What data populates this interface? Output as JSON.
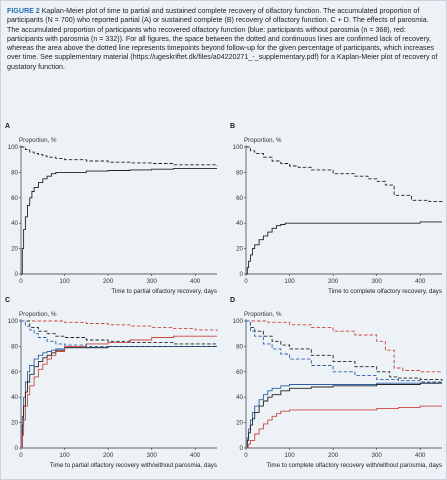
{
  "caption": {
    "label": "FIGURE 2",
    "text": " Kaplan-Meier plot of time to partial and sustained complete recovery of olfactory function. The accumulated proportion of participants (N = 700) who reported partial (A) or sustained complete (B) recovery of olfactory function. C + D. The effects of parosmia. The accumulated proportion of participants who recovered olfactory function (blue: participants without parosmia (n = 368), red: participants with parosmia (n = 332)). For all figures, the space between the dotted and continuous lines are confirmed lack of recovery, whereas the area above the dotted line represents timepoints beyond follow-up for the given percentage of participants, which increases over time. See supplementary material (https://ugeskriftet.dk/files/a04220271_-_supplementary.pdf) for a Kaplan-Meier plot of recovery of gustatory function."
  },
  "colors": {
    "black": "#222222",
    "blue": "#2f5fa8",
    "red": "#c9463f"
  },
  "chart_data": [
    {
      "type": "line",
      "panel": "A",
      "ylabel": "Proportion, %",
      "xlabel": "Time to partial olfactory recovery, days",
      "xlim": [
        0,
        450
      ],
      "ylim": [
        0,
        100
      ],
      "xticks": [
        0,
        100,
        200,
        300,
        400
      ],
      "yticks": [
        0,
        20,
        40,
        60,
        80,
        100
      ],
      "series": [
        {
          "color": "black",
          "style": "solid",
          "x": [
            0,
            3,
            6,
            10,
            15,
            20,
            25,
            30,
            40,
            50,
            60,
            70,
            80,
            90,
            100,
            150,
            200,
            250,
            300,
            350,
            400,
            450
          ],
          "y": [
            0,
            20,
            35,
            45,
            54,
            60,
            65,
            68,
            72,
            75,
            77,
            79,
            80,
            80,
            80,
            81,
            81.5,
            82,
            82.5,
            83,
            83,
            83
          ]
        },
        {
          "color": "black",
          "style": "dashed",
          "x": [
            0,
            10,
            20,
            30,
            40,
            50,
            60,
            80,
            100,
            150,
            200,
            250,
            300,
            350,
            400,
            450
          ],
          "y": [
            100,
            98,
            96,
            95,
            94,
            93,
            92,
            91,
            90,
            89,
            88,
            87.5,
            87,
            86,
            86,
            85
          ]
        }
      ]
    },
    {
      "type": "line",
      "panel": "B",
      "ylabel": "Proportion, %",
      "xlabel": "Time to complete olfactory recovery, days",
      "xlim": [
        0,
        450
      ],
      "ylim": [
        0,
        100
      ],
      "xticks": [
        0,
        100,
        200,
        300,
        400
      ],
      "yticks": [
        0,
        20,
        40,
        60,
        80,
        100
      ],
      "series": [
        {
          "color": "black",
          "style": "solid",
          "x": [
            0,
            3,
            6,
            10,
            15,
            20,
            30,
            40,
            50,
            60,
            70,
            80,
            90,
            100,
            150,
            200,
            300,
            400,
            450
          ],
          "y": [
            0,
            5,
            10,
            15,
            20,
            23,
            27,
            30,
            33,
            36,
            38,
            39,
            40,
            40,
            40,
            40,
            40,
            41,
            41
          ]
        },
        {
          "color": "black",
          "style": "dashed",
          "x": [
            0,
            10,
            20,
            40,
            60,
            80,
            100,
            120,
            150,
            200,
            250,
            280,
            300,
            320,
            340,
            380,
            420,
            450
          ],
          "y": [
            100,
            97,
            95,
            92,
            89,
            87,
            85,
            84,
            82,
            79,
            77,
            75,
            73,
            70,
            62,
            58,
            57,
            56
          ]
        }
      ]
    },
    {
      "type": "line",
      "panel": "C",
      "ylabel": "Proportion, %",
      "xlabel": "Time to partial olfactory recovery with/without parosmia, days",
      "xlim": [
        0,
        450
      ],
      "ylim": [
        0,
        100
      ],
      "xticks": [
        0,
        100,
        200,
        300,
        400
      ],
      "yticks": [
        0,
        20,
        40,
        60,
        80,
        100
      ],
      "series": [
        {
          "color": "blue",
          "style": "solid",
          "x": [
            0,
            3,
            6,
            10,
            15,
            20,
            30,
            40,
            50,
            60,
            70,
            80,
            100,
            150,
            200,
            300,
            400,
            450
          ],
          "y": [
            0,
            25,
            40,
            52,
            60,
            65,
            70,
            73,
            75,
            76,
            77,
            78,
            79,
            79,
            80,
            80,
            80,
            80
          ]
        },
        {
          "color": "black",
          "style": "solid",
          "x": [
            0,
            3,
            6,
            10,
            15,
            20,
            30,
            40,
            50,
            60,
            70,
            80,
            100,
            150,
            200,
            300,
            400,
            450
          ],
          "y": [
            0,
            18,
            33,
            44,
            52,
            58,
            64,
            68,
            71,
            73,
            75,
            77,
            79,
            79,
            80,
            80,
            80,
            80
          ]
        },
        {
          "color": "red",
          "style": "solid",
          "x": [
            0,
            3,
            6,
            10,
            15,
            20,
            30,
            40,
            50,
            60,
            70,
            80,
            100,
            150,
            200,
            250,
            300,
            350,
            400,
            450
          ],
          "y": [
            0,
            10,
            22,
            33,
            42,
            49,
            56,
            62,
            66,
            70,
            73,
            76,
            80,
            82,
            83,
            85,
            87,
            88,
            88,
            88
          ]
        },
        {
          "color": "red",
          "style": "dashed",
          "x": [
            0,
            50,
            100,
            150,
            200,
            250,
            300,
            350,
            400,
            450
          ],
          "y": [
            100,
            100,
            99,
            98,
            97,
            96,
            95,
            94,
            93,
            92
          ]
        },
        {
          "color": "black",
          "style": "dashed",
          "x": [
            0,
            20,
            40,
            60,
            80,
            100,
            150,
            200,
            250,
            300,
            350,
            400,
            450
          ],
          "y": [
            100,
            95,
            92,
            90,
            88,
            87,
            85,
            84,
            83,
            83,
            82,
            82,
            81
          ]
        },
        {
          "color": "blue",
          "style": "dashed",
          "x": [
            0,
            10,
            20,
            30,
            40,
            60,
            80,
            100,
            150,
            200,
            300,
            400,
            450
          ],
          "y": [
            100,
            96,
            93,
            90,
            87,
            84,
            82,
            81,
            80,
            80,
            80,
            80,
            80
          ]
        }
      ]
    },
    {
      "type": "line",
      "panel": "D",
      "ylabel": "Proportion, %",
      "xlabel": "Time to complete olfactory recovery with/without parosmia, days",
      "xlim": [
        0,
        450
      ],
      "ylim": [
        0,
        100
      ],
      "xticks": [
        0,
        100,
        200,
        300,
        400
      ],
      "yticks": [
        0,
        20,
        40,
        60,
        80,
        100
      ],
      "series": [
        {
          "color": "blue",
          "style": "solid",
          "x": [
            0,
            3,
            6,
            10,
            15,
            20,
            30,
            40,
            50,
            60,
            80,
            100,
            150,
            200,
            300,
            400,
            450
          ],
          "y": [
            0,
            8,
            15,
            22,
            28,
            33,
            38,
            42,
            45,
            47,
            49,
            50,
            50,
            50,
            51,
            51,
            51
          ]
        },
        {
          "color": "black",
          "style": "solid",
          "x": [
            0,
            3,
            6,
            10,
            15,
            20,
            30,
            40,
            50,
            60,
            80,
            100,
            150,
            200,
            300,
            400,
            450
          ],
          "y": [
            0,
            6,
            12,
            18,
            23,
            28,
            33,
            37,
            40,
            42,
            45,
            47,
            48,
            49,
            50,
            51,
            51
          ]
        },
        {
          "color": "red",
          "style": "solid",
          "x": [
            0,
            5,
            10,
            20,
            30,
            40,
            50,
            60,
            70,
            80,
            100,
            150,
            200,
            300,
            350,
            400,
            450
          ],
          "y": [
            0,
            3,
            6,
            11,
            15,
            19,
            22,
            25,
            27,
            29,
            30,
            30,
            30,
            31,
            32,
            33,
            33
          ]
        },
        {
          "color": "red",
          "style": "dashed",
          "x": [
            0,
            50,
            100,
            150,
            200,
            250,
            300,
            320,
            340,
            360,
            400,
            450
          ],
          "y": [
            100,
            99,
            97,
            95,
            92,
            89,
            84,
            77,
            63,
            61,
            60,
            60
          ]
        },
        {
          "color": "black",
          "style": "dashed",
          "x": [
            0,
            10,
            20,
            40,
            60,
            80,
            100,
            150,
            200,
            250,
            300,
            330,
            350,
            400,
            450
          ],
          "y": [
            100,
            95,
            92,
            88,
            84,
            81,
            78,
            73,
            68,
            64,
            60,
            56,
            55,
            54,
            53
          ]
        },
        {
          "color": "blue",
          "style": "dashed",
          "x": [
            0,
            10,
            20,
            40,
            60,
            80,
            100,
            150,
            200,
            250,
            300,
            350,
            400,
            450
          ],
          "y": [
            100,
            92,
            88,
            82,
            78,
            74,
            70,
            65,
            60,
            57,
            54,
            53,
            52,
            52
          ]
        }
      ]
    }
  ]
}
